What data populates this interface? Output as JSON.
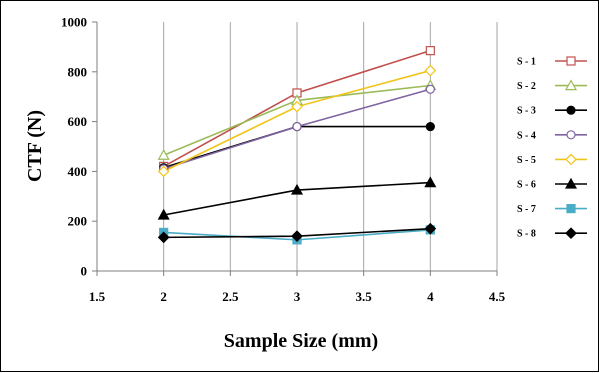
{
  "chart_data": {
    "type": "line",
    "title": "",
    "xlabel": "Sample Size (mm)",
    "ylabel": "CTF (N)",
    "xlim": [
      1.5,
      4.5
    ],
    "ylim": [
      0,
      1000
    ],
    "x_ticks": [
      1.5,
      2,
      2.5,
      3,
      3.5,
      4,
      4.5
    ],
    "y_ticks": [
      0,
      200,
      400,
      600,
      800,
      1000
    ],
    "x_tick_labels": [
      "1.5",
      "2",
      "2.5",
      "3",
      "3.5",
      "4",
      "4.5"
    ],
    "y_tick_labels": [
      "0",
      "200",
      "400",
      "600",
      "800",
      "1000"
    ],
    "grid": "vertical",
    "legend_position": "right",
    "x": [
      2,
      3,
      4
    ],
    "series": [
      {
        "name": "S - 1",
        "values": [
          420,
          715,
          885
        ],
        "color": "#c0504d",
        "marker": "square-open"
      },
      {
        "name": "S - 2",
        "values": [
          465,
          685,
          745
        ],
        "color": "#9bbb59",
        "marker": "triangle-open"
      },
      {
        "name": "S - 3",
        "values": [
          415,
          580,
          580
        ],
        "color": "#000000",
        "marker": "circle-filled"
      },
      {
        "name": "S - 4",
        "values": [
          410,
          580,
          730
        ],
        "color": "#8064a2",
        "marker": "circle-open"
      },
      {
        "name": "S - 5",
        "values": [
          400,
          660,
          805
        ],
        "color": "#f0c419",
        "marker": "diamond-open"
      },
      {
        "name": "S - 6",
        "values": [
          225,
          325,
          355
        ],
        "color": "#000000",
        "marker": "triangle-filled"
      },
      {
        "name": "S - 7",
        "values": [
          155,
          125,
          165
        ],
        "color": "#4bacc6",
        "marker": "square-filled"
      },
      {
        "name": "S - 8",
        "values": [
          135,
          140,
          170
        ],
        "color": "#000000",
        "marker": "diamond-filled"
      }
    ]
  }
}
